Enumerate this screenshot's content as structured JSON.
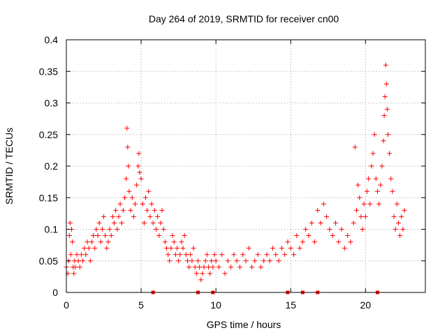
{
  "chart_data": {
    "type": "scatter",
    "title": "Day 264 of 2019, SRMTID for receiver cn00",
    "xlabel": "GPS time / hours",
    "ylabel": "SRMTID / TECUs",
    "xlim": [
      0,
      24
    ],
    "ylim": [
      0,
      0.4
    ],
    "x_ticks": [
      0,
      5,
      10,
      15,
      20
    ],
    "x_tick_labels": [
      "0",
      "5",
      "10",
      "15",
      "20"
    ],
    "y_ticks": [
      0,
      0.05,
      0.1,
      0.15,
      0.2,
      0.25,
      0.3,
      0.35,
      0.4
    ],
    "y_tick_labels": [
      "0",
      "0.05",
      "0.1",
      "0.15",
      "0.2",
      "0.25",
      "0.3",
      "0.35",
      "0.4"
    ],
    "grid": true,
    "marker": "plus",
    "color": "#ff0000",
    "series": [
      {
        "name": "SRMTID",
        "x": [
          0.0,
          0.1,
          0.15,
          0.2,
          0.25,
          0.3,
          0.35,
          0.4,
          0.45,
          0.5,
          0.55,
          0.6,
          0.7,
          0.8,
          0.9,
          1.0,
          1.1,
          1.2,
          1.3,
          1.4,
          1.5,
          1.6,
          1.7,
          1.8,
          1.9,
          2.0,
          2.1,
          2.2,
          2.3,
          2.4,
          2.5,
          2.6,
          2.7,
          2.8,
          2.9,
          3.0,
          3.1,
          3.2,
          3.3,
          3.4,
          3.5,
          3.6,
          3.7,
          3.8,
          3.9,
          4.0,
          4.05,
          4.1,
          4.15,
          4.2,
          4.3,
          4.4,
          4.5,
          4.6,
          4.7,
          4.8,
          4.85,
          4.9,
          5.0,
          5.1,
          5.2,
          5.3,
          5.4,
          5.5,
          5.6,
          5.7,
          5.8,
          5.9,
          6.0,
          6.1,
          6.2,
          6.3,
          6.4,
          6.5,
          6.6,
          6.7,
          6.8,
          6.9,
          7.0,
          7.1,
          7.2,
          7.3,
          7.4,
          7.5,
          7.6,
          7.7,
          7.8,
          7.9,
          8.0,
          8.1,
          8.2,
          8.3,
          8.4,
          8.5,
          8.6,
          8.7,
          8.8,
          8.9,
          9.0,
          9.1,
          9.2,
          9.3,
          9.4,
          9.5,
          9.6,
          9.7,
          9.8,
          9.9,
          10.0,
          10.2,
          10.4,
          10.6,
          10.8,
          11.0,
          11.2,
          11.4,
          11.6,
          11.8,
          12.0,
          12.2,
          12.4,
          12.6,
          12.8,
          13.0,
          13.2,
          13.4,
          13.6,
          13.8,
          14.0,
          14.2,
          14.4,
          14.6,
          14.8,
          15.0,
          15.2,
          15.4,
          15.6,
          15.8,
          16.0,
          16.2,
          16.4,
          16.6,
          16.8,
          17.0,
          17.2,
          17.4,
          17.6,
          17.8,
          18.0,
          18.2,
          18.4,
          18.6,
          18.8,
          19.0,
          19.2,
          19.3,
          19.4,
          19.5,
          19.6,
          19.7,
          19.8,
          19.9,
          20.0,
          20.1,
          20.2,
          20.3,
          20.4,
          20.5,
          20.6,
          20.7,
          20.8,
          20.9,
          21.0,
          21.1,
          21.2,
          21.25,
          21.3,
          21.35,
          21.4,
          21.45,
          21.5,
          21.6,
          21.7,
          21.8,
          21.9,
          22.0,
          22.1,
          22.2,
          22.3,
          22.4,
          22.5,
          22.6
        ],
        "y": [
          0.04,
          0.03,
          0.05,
          0.09,
          0.11,
          0.06,
          0.1,
          0.08,
          0.04,
          0.03,
          0.05,
          0.04,
          0.06,
          0.05,
          0.04,
          0.06,
          0.05,
          0.07,
          0.06,
          0.08,
          0.07,
          0.05,
          0.08,
          0.09,
          0.07,
          0.1,
          0.09,
          0.11,
          0.08,
          0.1,
          0.12,
          0.09,
          0.07,
          0.08,
          0.1,
          0.09,
          0.12,
          0.11,
          0.13,
          0.1,
          0.12,
          0.14,
          0.11,
          0.13,
          0.15,
          0.18,
          0.26,
          0.23,
          0.2,
          0.16,
          0.13,
          0.15,
          0.12,
          0.14,
          0.17,
          0.2,
          0.22,
          0.19,
          0.18,
          0.14,
          0.11,
          0.15,
          0.13,
          0.16,
          0.12,
          0.14,
          0.11,
          0.13,
          0.1,
          0.12,
          0.09,
          0.11,
          0.13,
          0.1,
          0.08,
          0.07,
          0.06,
          0.05,
          0.07,
          0.09,
          0.08,
          0.06,
          0.07,
          0.05,
          0.06,
          0.08,
          0.07,
          0.09,
          0.06,
          0.05,
          0.04,
          0.06,
          0.05,
          0.07,
          0.04,
          0.03,
          0.05,
          0.04,
          0.02,
          0.03,
          0.04,
          0.05,
          0.06,
          0.04,
          0.03,
          0.05,
          0.04,
          0.06,
          0.05,
          0.04,
          0.06,
          0.03,
          0.05,
          0.04,
          0.06,
          0.05,
          0.04,
          0.06,
          0.05,
          0.07,
          0.04,
          0.05,
          0.06,
          0.04,
          0.05,
          0.06,
          0.05,
          0.07,
          0.06,
          0.05,
          0.07,
          0.06,
          0.08,
          0.07,
          0.06,
          0.09,
          0.07,
          0.08,
          0.1,
          0.09,
          0.11,
          0.08,
          0.13,
          0.11,
          0.14,
          0.12,
          0.1,
          0.09,
          0.11,
          0.08,
          0.1,
          0.07,
          0.09,
          0.08,
          0.11,
          0.23,
          0.13,
          0.17,
          0.15,
          0.12,
          0.1,
          0.14,
          0.12,
          0.16,
          0.18,
          0.14,
          0.2,
          0.22,
          0.25,
          0.18,
          0.16,
          0.14,
          0.17,
          0.2,
          0.24,
          0.28,
          0.31,
          0.36,
          0.33,
          0.29,
          0.25,
          0.22,
          0.18,
          0.16,
          0.12,
          0.1,
          0.14,
          0.11,
          0.09,
          0.12,
          0.1,
          0.13
        ]
      }
    ],
    "baseline_markers_x": [
      5.8,
      8.8,
      9.8,
      14.8,
      15.8,
      16.8,
      20.8
    ]
  }
}
